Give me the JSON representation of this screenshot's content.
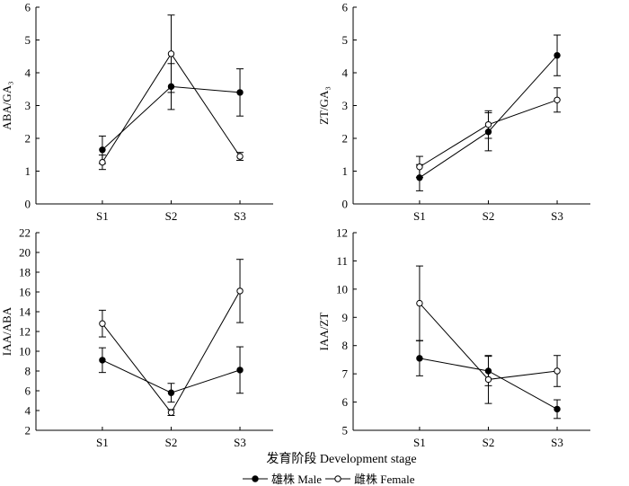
{
  "figure": {
    "xlabel": "发育阶段 Development stage",
    "legend": [
      {
        "label": "雄株 Male",
        "marker": "filled"
      },
      {
        "label": "雌株 Female",
        "marker": "open"
      }
    ]
  },
  "chart_data": [
    {
      "type": "line",
      "ylabel": "ABA/GA₃",
      "categories": [
        "S1",
        "S2",
        "S3"
      ],
      "ylim": [
        0,
        6
      ],
      "yticks": [
        0,
        1,
        2,
        3,
        4,
        5,
        6
      ],
      "series": [
        {
          "name": "雄株 Male",
          "values": [
            1.65,
            3.58,
            3.4
          ],
          "errors": [
            0.42,
            0.7,
            0.72
          ]
        },
        {
          "name": "雌株 Female",
          "values": [
            1.27,
            4.58,
            1.45
          ],
          "errors": [
            0.22,
            1.18,
            0.12
          ]
        }
      ]
    },
    {
      "type": "line",
      "ylabel": "ZT/GA₃",
      "categories": [
        "S1",
        "S2",
        "S3"
      ],
      "ylim": [
        0,
        6
      ],
      "yticks": [
        0,
        1,
        2,
        3,
        4,
        5,
        6
      ],
      "series": [
        {
          "name": "雄株 Male",
          "values": [
            0.8,
            2.2,
            4.53
          ],
          "errors": [
            0.4,
            0.58,
            0.62
          ]
        },
        {
          "name": "雌株 Female",
          "values": [
            1.13,
            2.42,
            3.17
          ],
          "errors": [
            0.32,
            0.42,
            0.37
          ]
        }
      ]
    },
    {
      "type": "line",
      "ylabel": "IAA/ABA",
      "categories": [
        "S1",
        "S2",
        "S3"
      ],
      "ylim": [
        2,
        22
      ],
      "yticks": [
        2,
        4,
        6,
        8,
        10,
        12,
        14,
        16,
        18,
        20,
        22
      ],
      "series": [
        {
          "name": "雄株 Male",
          "values": [
            9.1,
            5.8,
            8.1
          ],
          "errors": [
            1.25,
            0.95,
            2.35
          ]
        },
        {
          "name": "雌株 Female",
          "values": [
            12.8,
            3.8,
            16.1
          ],
          "errors": [
            1.35,
            0.3,
            3.2
          ]
        }
      ]
    },
    {
      "type": "line",
      "ylabel": "IAA/ZT",
      "categories": [
        "S1",
        "S2",
        "S3"
      ],
      "ylim": [
        5,
        12
      ],
      "yticks": [
        5,
        6,
        7,
        8,
        9,
        10,
        11,
        12
      ],
      "series": [
        {
          "name": "雄株 Male",
          "values": [
            7.55,
            7.1,
            5.75
          ],
          "errors": [
            0.62,
            0.52,
            0.33
          ]
        },
        {
          "name": "雌株 Female",
          "values": [
            9.5,
            6.8,
            7.1
          ],
          "errors": [
            1.32,
            0.85,
            0.55
          ]
        }
      ]
    }
  ]
}
